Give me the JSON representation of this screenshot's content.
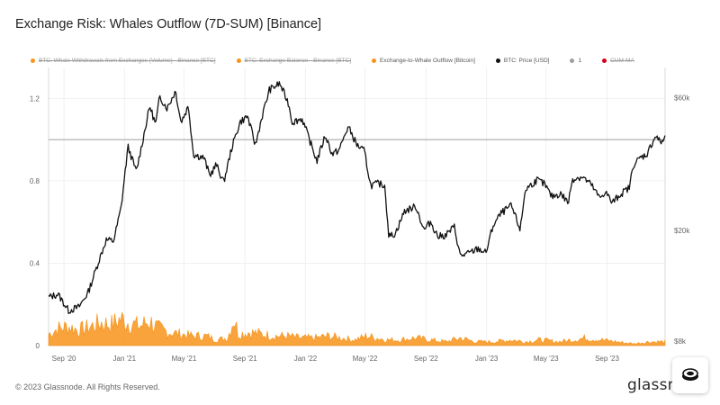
{
  "header": {
    "title": "Exchange Risk: Whales Outflow (7D-SUM) [Binance]"
  },
  "legend": [
    {
      "label": "BTC: Whale Withdrawals from Exchanges (Volume) - Binance [BTC]",
      "color": "#f7931a",
      "struck": true
    },
    {
      "label": "BTC: Exchange Balance - Binance [BTC]",
      "color": "#f7931a",
      "struck": true
    },
    {
      "label": "Exchange-to-Whale Outflow [Bitcoin]",
      "color": "#f7931a",
      "struck": false
    },
    {
      "label": "BTC: Price [USD]",
      "color": "#111111",
      "struck": false
    },
    {
      "label": "1",
      "color": "#9e9e9e",
      "struck": false
    },
    {
      "label": "CUM-MA",
      "color": "#d0021b",
      "struck": true
    }
  ],
  "chart_data": {
    "type": "line",
    "title": "Exchange Risk: Whales Outflow (7D-SUM) [Binance]",
    "x_ticks": [
      "Sep '20",
      "Jan '21",
      "May '21",
      "Sep '21",
      "Jan '22",
      "May '22",
      "Sep '22",
      "Jan '23",
      "May '23",
      "Sep '23"
    ],
    "y_left_ticks": [
      "0",
      "0.4",
      "0.8",
      "1.2"
    ],
    "y_left_range": [
      0,
      1.35
    ],
    "y_right_ticks": [
      "$8k",
      "$20k",
      "$60k"
    ],
    "y_right_scale": "log",
    "reference_line": 1,
    "grid": true,
    "series": [
      {
        "name": "BTC: Price [USD]",
        "color": "#111111",
        "axis": "right",
        "points": [
          [
            "2020-08-01",
            11500
          ],
          [
            "2020-08-20",
            11800
          ],
          [
            "2020-09-10",
            10300
          ],
          [
            "2020-10-01",
            10600
          ],
          [
            "2020-10-20",
            12000
          ],
          [
            "2020-11-10",
            15500
          ],
          [
            "2020-11-25",
            18500
          ],
          [
            "2020-12-10",
            18300
          ],
          [
            "2020-12-25",
            24000
          ],
          [
            "2021-01-08",
            40000
          ],
          [
            "2021-01-25",
            32500
          ],
          [
            "2021-02-10",
            45000
          ],
          [
            "2021-02-21",
            56000
          ],
          [
            "2021-03-05",
            48000
          ],
          [
            "2021-03-13",
            60500
          ],
          [
            "2021-03-28",
            55000
          ],
          [
            "2021-04-14",
            63500
          ],
          [
            "2021-04-25",
            49000
          ],
          [
            "2021-05-10",
            56000
          ],
          [
            "2021-05-20",
            37500
          ],
          [
            "2021-06-10",
            36500
          ],
          [
            "2021-06-22",
            31500
          ],
          [
            "2021-07-05",
            34500
          ],
          [
            "2021-07-20",
            29800
          ],
          [
            "2021-08-05",
            39500
          ],
          [
            "2021-08-22",
            49000
          ],
          [
            "2021-09-06",
            51500
          ],
          [
            "2021-09-22",
            40500
          ],
          [
            "2021-10-05",
            51000
          ],
          [
            "2021-10-20",
            64000
          ],
          [
            "2021-11-10",
            67500
          ],
          [
            "2021-11-28",
            57000
          ],
          [
            "2021-12-05",
            49000
          ],
          [
            "2021-12-25",
            50500
          ],
          [
            "2022-01-10",
            41800
          ],
          [
            "2022-01-24",
            35500
          ],
          [
            "2022-02-10",
            44000
          ],
          [
            "2022-02-24",
            37500
          ],
          [
            "2022-03-10",
            39000
          ],
          [
            "2022-03-28",
            47200
          ],
          [
            "2022-04-15",
            40500
          ],
          [
            "2022-04-30",
            38500
          ],
          [
            "2022-05-12",
            29000
          ],
          [
            "2022-05-28",
            29500
          ],
          [
            "2022-06-10",
            29000
          ],
          [
            "2022-06-18",
            19000
          ],
          [
            "2022-07-01",
            19500
          ],
          [
            "2022-07-20",
            23500
          ],
          [
            "2022-08-12",
            24400
          ],
          [
            "2022-08-28",
            20000
          ],
          [
            "2022-09-10",
            21500
          ],
          [
            "2022-09-25",
            19000
          ],
          [
            "2022-10-10",
            19200
          ],
          [
            "2022-10-28",
            20600
          ],
          [
            "2022-11-09",
            16200
          ],
          [
            "2022-11-25",
            16500
          ],
          [
            "2022-12-15",
            17200
          ],
          [
            "2022-12-31",
            16600
          ],
          [
            "2023-01-14",
            20800
          ],
          [
            "2023-01-31",
            23100
          ],
          [
            "2023-02-20",
            24500
          ],
          [
            "2023-03-10",
            20100
          ],
          [
            "2023-03-20",
            28000
          ],
          [
            "2023-04-13",
            30400
          ],
          [
            "2023-04-28",
            29300
          ],
          [
            "2023-05-12",
            26500
          ],
          [
            "2023-05-31",
            27100
          ],
          [
            "2023-06-15",
            25100
          ],
          [
            "2023-06-23",
            30600
          ],
          [
            "2023-07-13",
            31200
          ],
          [
            "2023-07-31",
            29200
          ],
          [
            "2023-08-17",
            26100
          ],
          [
            "2023-08-29",
            27600
          ],
          [
            "2023-09-11",
            25100
          ],
          [
            "2023-09-28",
            27000
          ],
          [
            "2023-10-16",
            28500
          ],
          [
            "2023-10-24",
            34500
          ],
          [
            "2023-11-09",
            36700
          ],
          [
            "2023-11-20",
            37500
          ],
          [
            "2023-12-08",
            43800
          ],
          [
            "2023-12-18",
            41300
          ],
          [
            "2023-12-27",
            43000
          ]
        ]
      },
      {
        "name": "Exchange-to-Whale Outflow [Bitcoin]",
        "color": "#f7931a",
        "axis": "left",
        "type": "area",
        "points": [
          [
            "2020-08-01",
            0.06
          ],
          [
            "2020-08-20",
            0.09
          ],
          [
            "2020-09-10",
            0.1
          ],
          [
            "2020-10-01",
            0.08
          ],
          [
            "2020-10-25",
            0.1
          ],
          [
            "2020-11-15",
            0.12
          ],
          [
            "2020-12-05",
            0.11
          ],
          [
            "2020-12-25",
            0.14
          ],
          [
            "2021-01-10",
            0.12
          ],
          [
            "2021-01-31",
            0.1
          ],
          [
            "2021-02-20",
            0.13
          ],
          [
            "2021-03-10",
            0.09
          ],
          [
            "2021-04-01",
            0.07
          ],
          [
            "2021-04-25",
            0.06
          ],
          [
            "2021-05-20",
            0.05
          ],
          [
            "2021-06-15",
            0.05
          ],
          [
            "2021-07-05",
            0.03
          ],
          [
            "2021-07-28",
            0.04
          ],
          [
            "2021-08-10",
            0.15
          ],
          [
            "2021-08-18",
            0.06
          ],
          [
            "2021-09-10",
            0.07
          ],
          [
            "2021-10-05",
            0.06
          ],
          [
            "2021-10-30",
            0.05
          ],
          [
            "2021-11-25",
            0.05
          ],
          [
            "2021-12-20",
            0.04
          ],
          [
            "2022-01-20",
            0.04
          ],
          [
            "2022-02-15",
            0.05
          ],
          [
            "2022-03-15",
            0.04
          ],
          [
            "2022-04-10",
            0.03
          ],
          [
            "2022-05-05",
            0.05
          ],
          [
            "2022-05-25",
            0.04
          ],
          [
            "2022-06-15",
            0.03
          ],
          [
            "2022-07-10",
            0.03
          ],
          [
            "2022-08-10",
            0.04
          ],
          [
            "2022-09-10",
            0.03
          ],
          [
            "2022-10-10",
            0.02
          ],
          [
            "2022-11-09",
            0.04
          ],
          [
            "2022-12-10",
            0.02
          ],
          [
            "2023-01-15",
            0.02
          ],
          [
            "2023-02-20",
            0.03
          ],
          [
            "2023-03-20",
            0.02
          ],
          [
            "2023-04-20",
            0.03
          ],
          [
            "2023-05-25",
            0.02
          ],
          [
            "2023-06-25",
            0.03
          ],
          [
            "2023-07-20",
            0.04
          ],
          [
            "2023-08-20",
            0.03
          ],
          [
            "2023-09-20",
            0.02
          ],
          [
            "2023-10-25",
            0.01
          ],
          [
            "2023-11-25",
            0.02
          ],
          [
            "2023-12-27",
            0.02
          ]
        ]
      }
    ]
  },
  "footer": {
    "copyright": "© 2023 Glassnode. All Rights Reserved.",
    "brand": "glassnode"
  }
}
